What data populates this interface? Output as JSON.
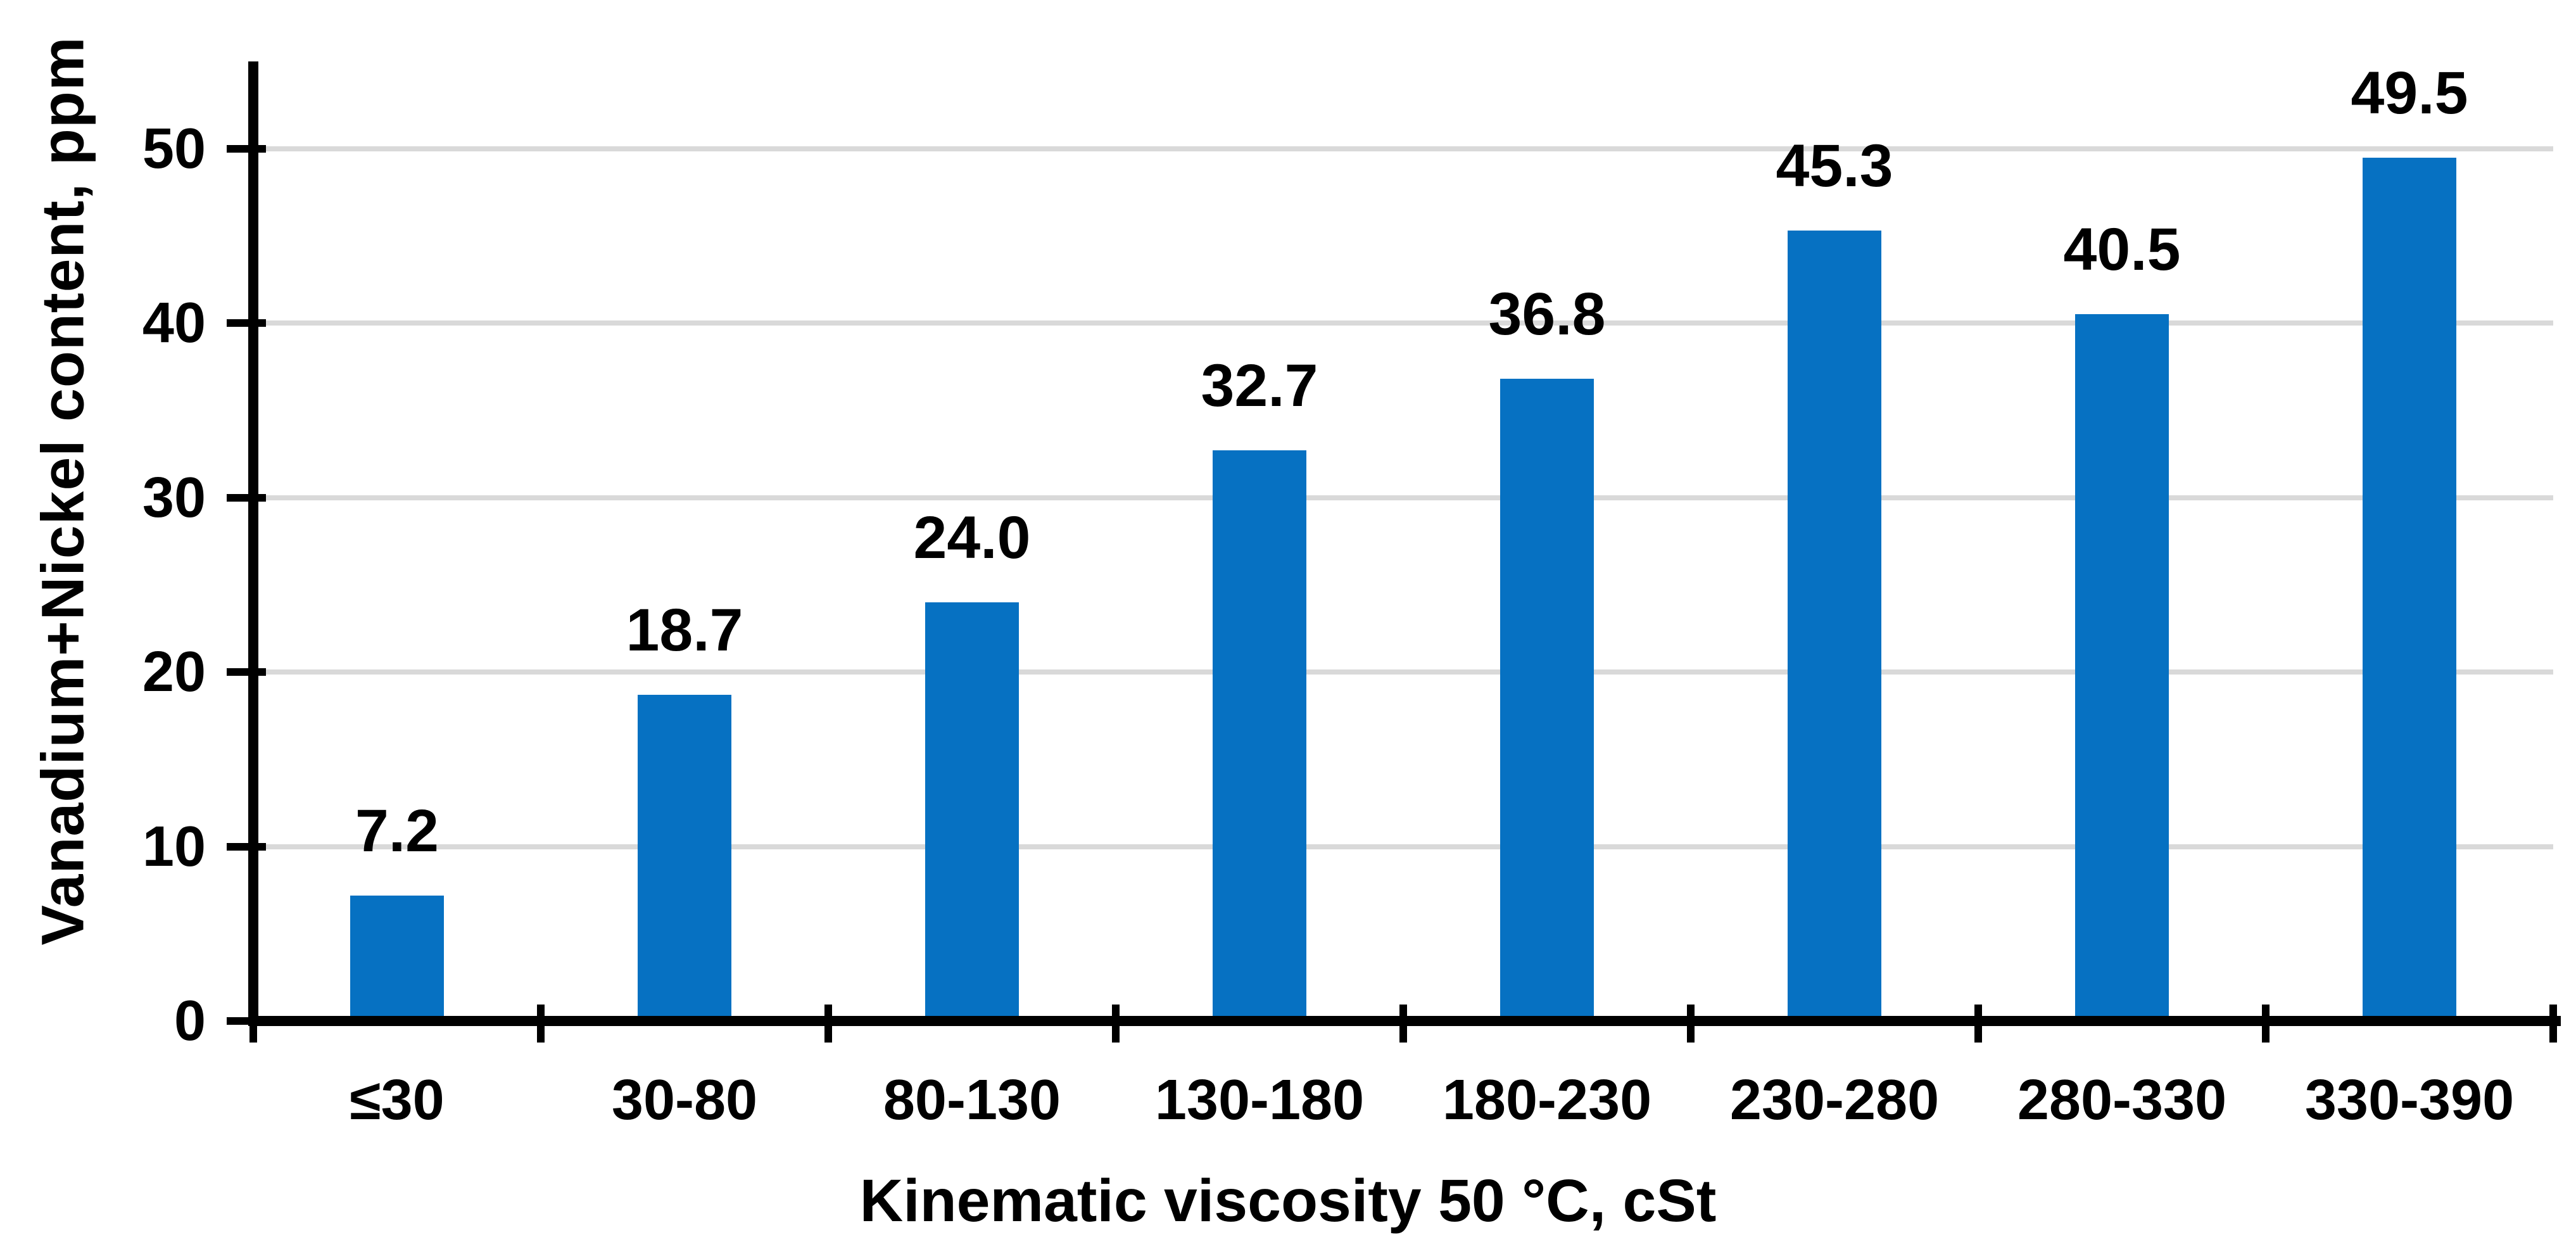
{
  "chart_data": {
    "type": "bar",
    "title": "",
    "xlabel": "Kinematic viscosity 50 °C, cSt",
    "ylabel": "Vanadium+Nickel content, ppm",
    "categories": [
      "≤30",
      "30-80",
      "80-130",
      "130-180",
      "180-230",
      "230-280",
      "280-330",
      "330-390"
    ],
    "values": [
      7.2,
      18.7,
      24.0,
      32.7,
      36.8,
      45.3,
      40.5,
      49.5
    ],
    "value_labels": [
      "7.2",
      "18.7",
      "24.0",
      "32.7",
      "36.8",
      "45.3",
      "40.5",
      "49.5"
    ],
    "y_ticks": [
      0,
      10,
      20,
      30,
      40,
      50
    ],
    "ylim": [
      0,
      55
    ],
    "grid": true,
    "legend": false,
    "bar_color": "#0671C2",
    "gridline_color": "#D9D9D9",
    "axis_color": "#000000",
    "text_color": "#000000",
    "background_color": "#FFFFFF"
  }
}
